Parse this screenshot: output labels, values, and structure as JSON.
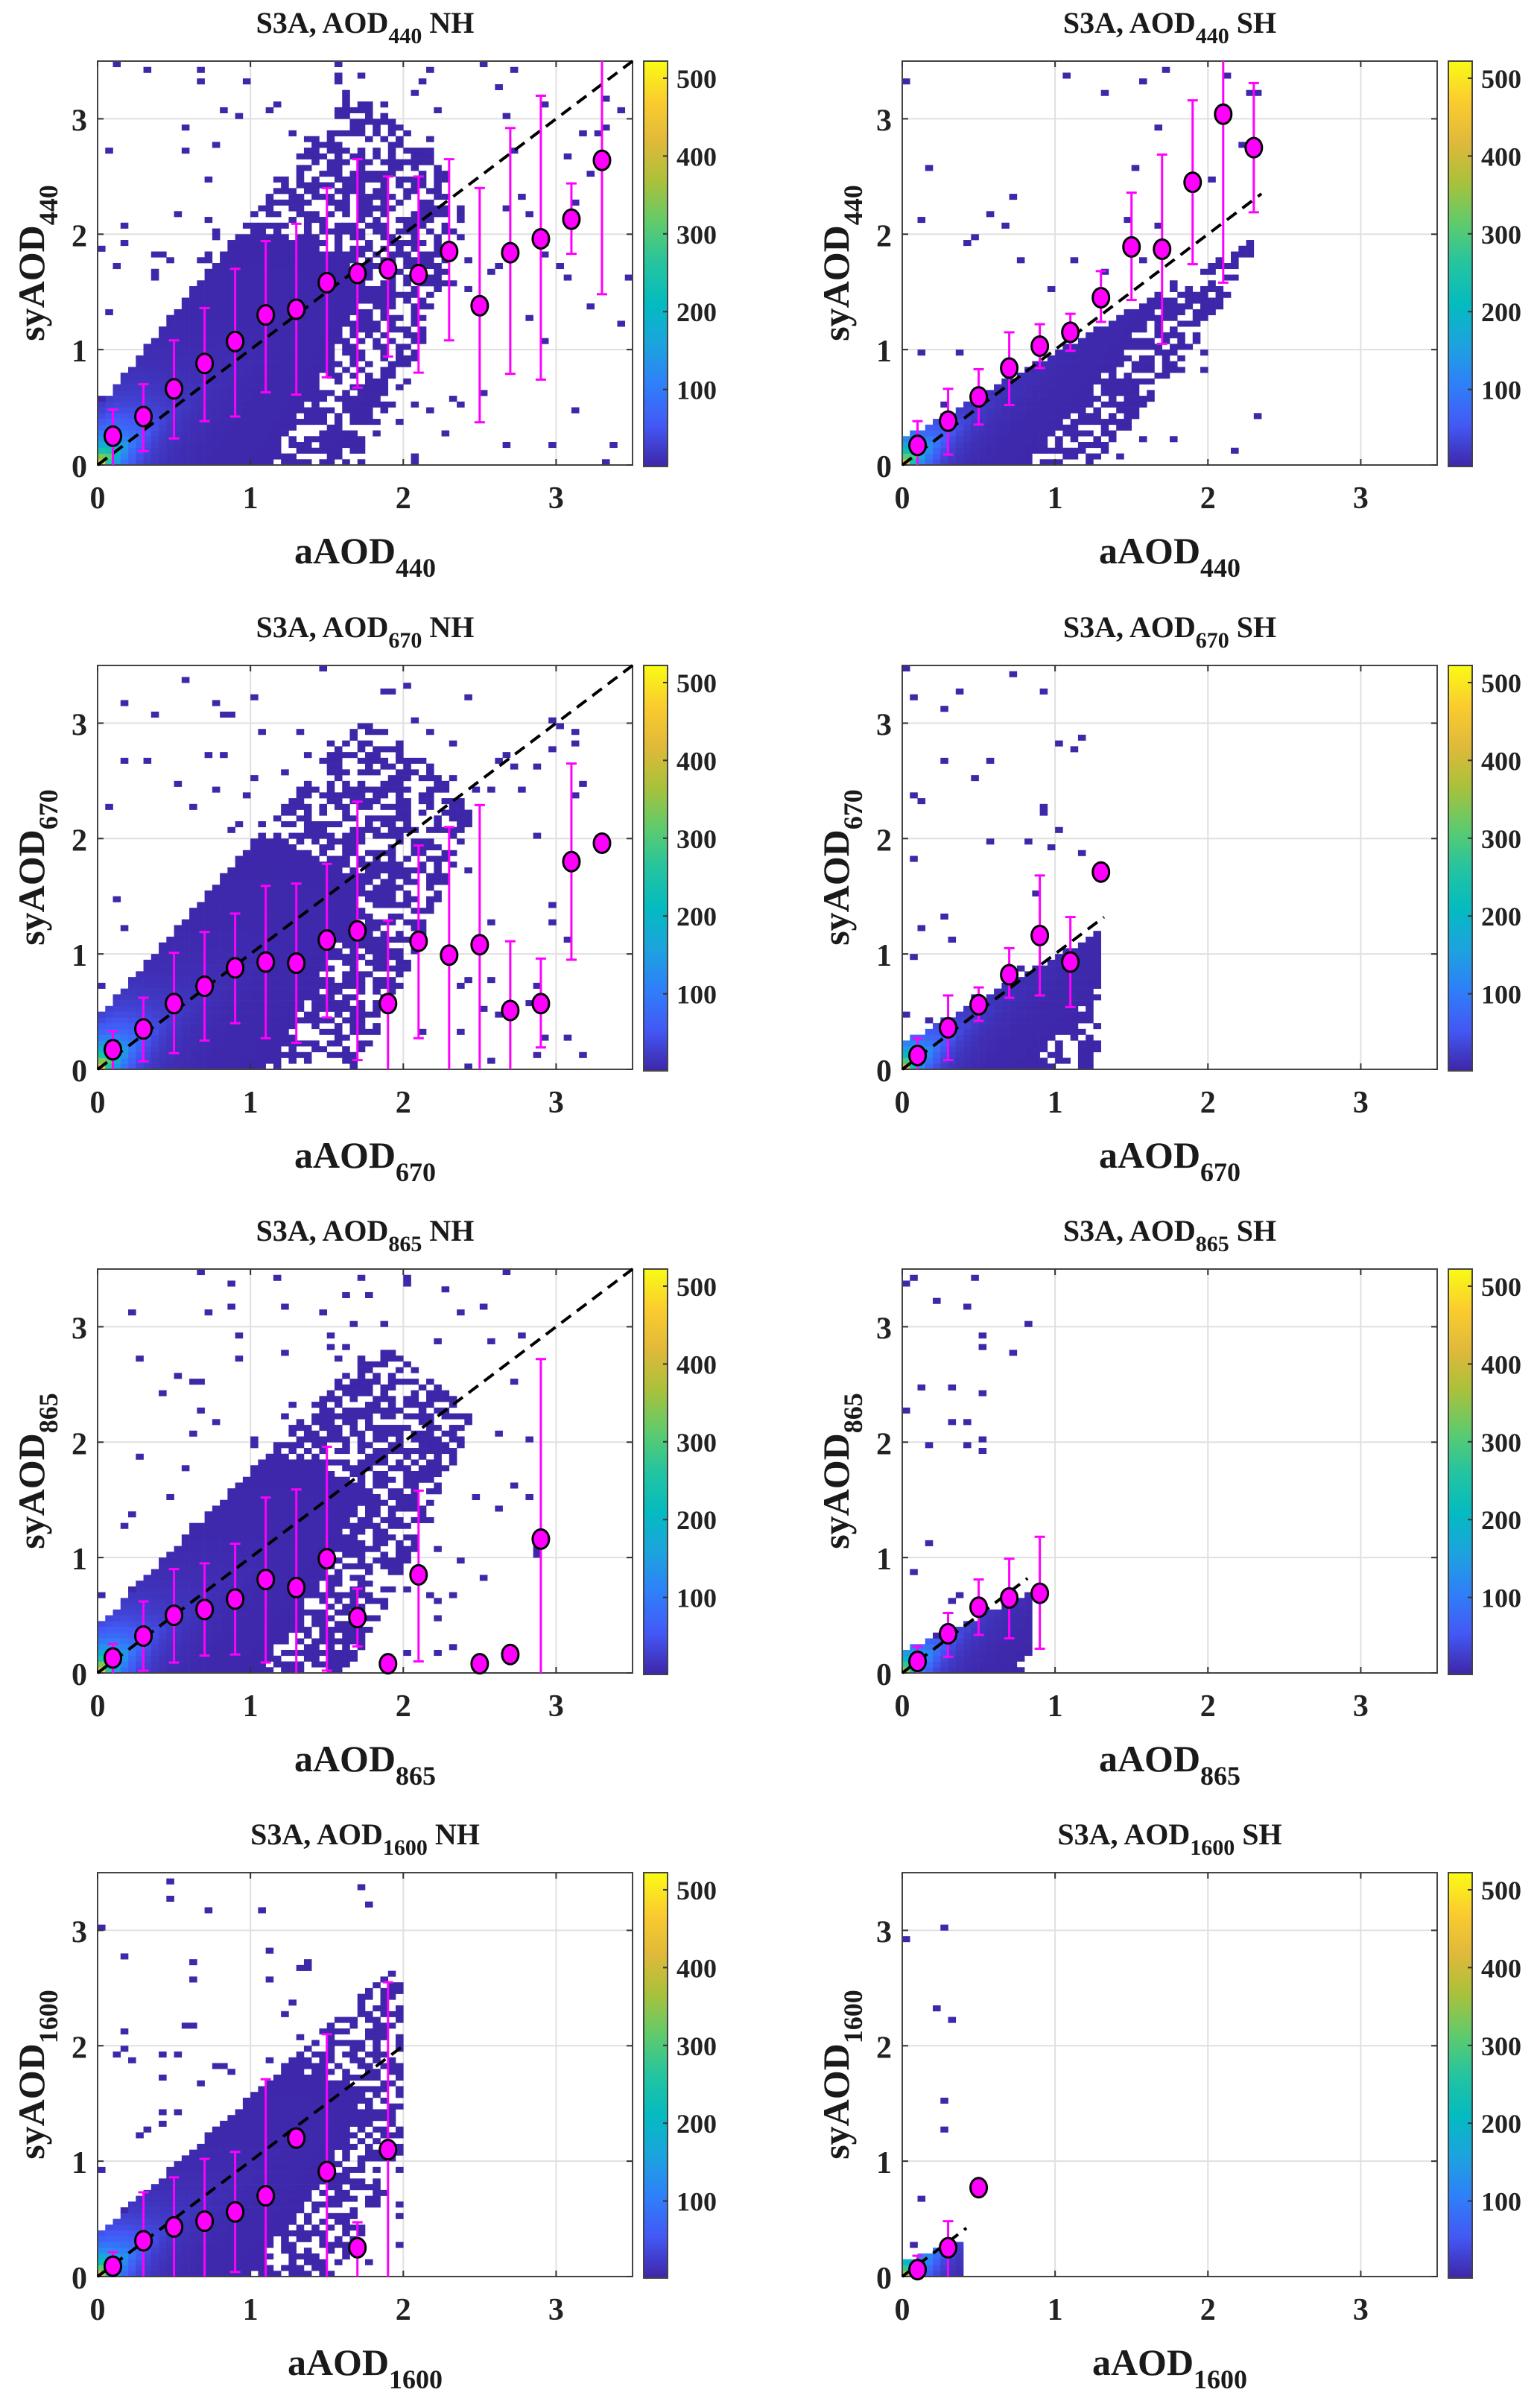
{
  "figure": {
    "layout": "4 rows x 2 columns",
    "colorbar": {
      "range": [
        1,
        522
      ],
      "ticks": [
        "100",
        "200",
        "300",
        "400",
        "500"
      ],
      "tick_values": [
        100,
        200,
        300,
        400,
        500
      ],
      "colormap": "parula"
    },
    "colors": {
      "mean_marker_fill": "#ff00ff",
      "mean_marker_edge": "#000000",
      "errorbar": "#ff00ff",
      "one_to_one_line": "#000000",
      "grid": "#e0e0e0",
      "low_density_bin": "#4040e0"
    }
  },
  "chart_data": [
    {
      "type": "heatmap",
      "title": "S3A, AOD",
      "title_sub": "440",
      "title_suffix": "NH",
      "xlabel": "aAOD",
      "xlabel_sub": "440",
      "ylabel": "syAOD",
      "ylabel_sub": "440",
      "xlim": [
        0,
        3.5
      ],
      "ylim": [
        0,
        3.5
      ],
      "xticks": [
        0,
        1,
        2,
        3
      ],
      "yticks": [
        0,
        1,
        2,
        3
      ],
      "grid": true,
      "one_to_one_max": 3.5,
      "density": {
        "spread": 0.55,
        "max_x": 3.5,
        "scatter_n": 170,
        "peak": 520
      },
      "binned": {
        "x": [
          0.1,
          0.3,
          0.5,
          0.7,
          0.9,
          1.1,
          1.3,
          1.5,
          1.7,
          1.9,
          2.1,
          2.3,
          2.5,
          2.7,
          2.9,
          3.1,
          3.3
        ],
        "mean": [
          0.25,
          0.42,
          0.66,
          0.88,
          1.07,
          1.3,
          1.35,
          1.58,
          1.66,
          1.7,
          1.65,
          1.85,
          1.38,
          1.84,
          1.96,
          2.13,
          2.64
        ],
        "low": [
          0.0,
          0.12,
          0.23,
          0.38,
          0.42,
          0.63,
          0.61,
          0.76,
          0.67,
          0.94,
          0.8,
          1.08,
          0.37,
          0.79,
          0.74,
          1.83,
          1.48
        ],
        "high": [
          0.48,
          0.7,
          1.08,
          1.36,
          1.7,
          1.94,
          2.09,
          2.4,
          2.65,
          2.5,
          2.5,
          2.65,
          2.4,
          2.92,
          3.2,
          2.44,
          3.5
        ]
      }
    },
    {
      "type": "heatmap",
      "title": "S3A, AOD",
      "title_sub": "440",
      "title_suffix": "SH",
      "xlabel": "aAOD",
      "xlabel_sub": "440",
      "ylabel": "syAOD",
      "ylabel_sub": "440",
      "xlim": [
        0,
        3.5
      ],
      "ylim": [
        0,
        3.5
      ],
      "xticks": [
        0,
        1,
        2,
        3
      ],
      "yticks": [
        0,
        1,
        2,
        3
      ],
      "grid": true,
      "one_to_one_max": 2.35,
      "density": {
        "spread": 0.25,
        "max_x": 2.4,
        "scatter_n": 45,
        "peak": 480
      },
      "binned": {
        "x": [
          0.1,
          0.3,
          0.5,
          0.7,
          0.9,
          1.1,
          1.3,
          1.5,
          1.7,
          1.9,
          2.1,
          2.3
        ],
        "mean": [
          0.17,
          0.38,
          0.59,
          0.84,
          1.03,
          1.15,
          1.45,
          1.89,
          1.87,
          2.45,
          3.04,
          2.75
        ],
        "low": [
          0.0,
          0.09,
          0.35,
          0.52,
          0.84,
          0.99,
          1.24,
          1.43,
          1.05,
          1.74,
          1.58,
          2.19
        ],
        "high": [
          0.38,
          0.66,
          0.83,
          1.15,
          1.22,
          1.31,
          1.68,
          2.36,
          2.69,
          3.16,
          3.5,
          3.31
        ]
      }
    },
    {
      "type": "heatmap",
      "title": "S3A, AOD",
      "title_sub": "670",
      "title_suffix": "NH",
      "xlabel": "aAOD",
      "xlabel_sub": "670",
      "ylabel": "syAOD",
      "ylabel_sub": "670",
      "xlim": [
        0,
        3.5
      ],
      "ylim": [
        0,
        3.5
      ],
      "xticks": [
        0,
        1,
        2,
        3
      ],
      "yticks": [
        0,
        1,
        2,
        3
      ],
      "grid": true,
      "one_to_one_max": 3.5,
      "density": {
        "spread": 0.5,
        "max_x": 3.2,
        "scatter_n": 120,
        "peak": 520
      },
      "binned": {
        "x": [
          0.1,
          0.3,
          0.5,
          0.7,
          0.9,
          1.1,
          1.3,
          1.5,
          1.7,
          1.9,
          2.1,
          2.3,
          2.5,
          2.7,
          2.9,
          3.1,
          3.3
        ],
        "mean": [
          0.17,
          0.35,
          0.57,
          0.72,
          0.88,
          0.93,
          0.92,
          1.12,
          1.2,
          0.57,
          1.11,
          0.99,
          1.08,
          0.51,
          0.57,
          1.8,
          1.96
        ],
        "low": [
          0.0,
          0.07,
          0.14,
          0.25,
          0.4,
          0.27,
          0.23,
          0.45,
          0.08,
          0.0,
          0.27,
          0.0,
          0.0,
          0.0,
          0.19,
          0.95,
          1.96
        ],
        "high": [
          0.33,
          0.62,
          1.01,
          1.19,
          1.35,
          1.59,
          1.61,
          1.78,
          2.32,
          1.29,
          1.94,
          2.1,
          2.29,
          1.11,
          0.96,
          2.65,
          1.96
        ]
      }
    },
    {
      "type": "heatmap",
      "title": "S3A, AOD",
      "title_sub": "670",
      "title_suffix": "SH",
      "xlabel": "aAOD",
      "xlabel_sub": "670",
      "ylabel": "syAOD",
      "ylabel_sub": "670",
      "xlim": [
        0,
        3.5
      ],
      "ylim": [
        0,
        3.5
      ],
      "xticks": [
        0,
        1,
        2,
        3
      ],
      "yticks": [
        0,
        1,
        2,
        3
      ],
      "grid": true,
      "one_to_one_max": 1.32,
      "density": {
        "spread": 0.25,
        "max_x": 1.3,
        "scatter_n": 40,
        "peak": 450
      },
      "binned": {
        "x": [
          0.1,
          0.3,
          0.5,
          0.7,
          0.9,
          1.1,
          1.3
        ],
        "mean": [
          0.12,
          0.36,
          0.56,
          0.82,
          1.16,
          0.93,
          1.71
        ],
        "low": [
          0.0,
          0.08,
          0.42,
          0.62,
          0.64,
          0.54,
          1.71
        ],
        "high": [
          0.27,
          0.64,
          0.71,
          1.05,
          1.68,
          1.32,
          1.71
        ]
      }
    },
    {
      "type": "heatmap",
      "title": "S3A, AOD",
      "title_sub": "865",
      "title_suffix": "NH",
      "xlabel": "aAOD",
      "xlabel_sub": "865",
      "ylabel": "syAOD",
      "ylabel_sub": "865",
      "xlim": [
        0,
        3.5
      ],
      "ylim": [
        0,
        3.5
      ],
      "xticks": [
        0,
        1,
        2,
        3
      ],
      "yticks": [
        0,
        1,
        2,
        3
      ],
      "grid": true,
      "one_to_one_max": 3.5,
      "density": {
        "spread": 0.45,
        "max_x": 2.9,
        "scatter_n": 110,
        "peak": 520
      },
      "binned": {
        "x": [
          0.1,
          0.3,
          0.5,
          0.7,
          0.9,
          1.1,
          1.3,
          1.5,
          1.7,
          1.9,
          2.1,
          2.5,
          2.7,
          2.9
        ],
        "mean": [
          0.13,
          0.32,
          0.5,
          0.55,
          0.64,
          0.81,
          0.74,
          0.99,
          0.48,
          0.08,
          0.85,
          0.08,
          0.16,
          1.16
        ],
        "low": [
          0.0,
          0.02,
          0.09,
          0.15,
          0.16,
          0.09,
          0.0,
          0.02,
          0.23,
          0.08,
          0.1,
          0.08,
          0.16,
          0.0
        ],
        "high": [
          0.25,
          0.62,
          0.9,
          0.95,
          1.12,
          1.52,
          1.59,
          1.96,
          0.73,
          0.08,
          1.58,
          0.08,
          0.16,
          2.72
        ]
      }
    },
    {
      "type": "heatmap",
      "title": "S3A, AOD",
      "title_sub": "865",
      "title_suffix": "SH",
      "xlabel": "aAOD",
      "xlabel_sub": "865",
      "ylabel": "syAOD",
      "ylabel_sub": "865",
      "xlim": [
        0,
        3.5
      ],
      "ylim": [
        0,
        3.5
      ],
      "xticks": [
        0,
        1,
        2,
        3
      ],
      "yticks": [
        0,
        1,
        2,
        3
      ],
      "grid": true,
      "one_to_one_max": 0.82,
      "density": {
        "spread": 0.2,
        "max_x": 0.85,
        "scatter_n": 30,
        "peak": 420
      },
      "binned": {
        "x": [
          0.1,
          0.3,
          0.5,
          0.7,
          0.9
        ],
        "mean": [
          0.1,
          0.34,
          0.57,
          0.65,
          0.69
        ],
        "low": [
          0.0,
          0.14,
          0.33,
          0.3,
          0.21
        ],
        "high": [
          0.23,
          0.52,
          0.81,
          0.99,
          1.18
        ]
      }
    },
    {
      "type": "heatmap",
      "title": "S3A, AOD",
      "title_sub": "1600",
      "title_suffix": "NH",
      "xlabel": "aAOD",
      "xlabel_sub": "1600",
      "ylabel": "syAOD",
      "ylabel_sub": "1600",
      "xlim": [
        0,
        3.5
      ],
      "ylim": [
        0,
        3.5
      ],
      "xticks": [
        0,
        1,
        2,
        3
      ],
      "yticks": [
        0,
        1,
        2,
        3
      ],
      "grid": true,
      "one_to_one_max": 2.0,
      "density": {
        "spread": 0.4,
        "max_x": 2.0,
        "scatter_n": 90,
        "peak": 480
      },
      "binned": {
        "x": [
          0.1,
          0.3,
          0.5,
          0.7,
          0.9,
          1.1,
          1.3,
          1.5,
          1.7,
          1.9
        ],
        "mean": [
          0.09,
          0.31,
          0.43,
          0.48,
          0.56,
          0.7,
          1.2,
          0.91,
          0.25,
          1.1
        ],
        "low": [
          0.0,
          0.0,
          0.0,
          0.0,
          0.04,
          0.0,
          1.2,
          0.0,
          0.0,
          0.0
        ],
        "high": [
          0.21,
          0.73,
          0.86,
          1.02,
          1.08,
          1.71,
          1.2,
          2.1,
          0.47,
          2.55
        ]
      }
    },
    {
      "type": "heatmap",
      "title": "S3A, AOD",
      "title_sub": "1600",
      "title_suffix": "SH",
      "xlabel": "aAOD",
      "xlabel_sub": "1600",
      "ylabel": "syAOD",
      "ylabel_sub": "1600",
      "xlim": [
        0,
        3.5
      ],
      "ylim": [
        0,
        3.5
      ],
      "xticks": [
        0,
        1,
        2,
        3
      ],
      "yticks": [
        0,
        1,
        2,
        3
      ],
      "grid": true,
      "one_to_one_max": 0.42,
      "density": {
        "spread": 0.15,
        "max_x": 0.4,
        "scatter_n": 8,
        "peak": 420
      },
      "binned": {
        "x": [
          0.1,
          0.3,
          0.5
        ],
        "mean": [
          0.06,
          0.25,
          0.77
        ],
        "low": [
          0.0,
          0.0,
          0.77
        ],
        "high": [
          0.18,
          0.48,
          0.77
        ]
      }
    }
  ]
}
